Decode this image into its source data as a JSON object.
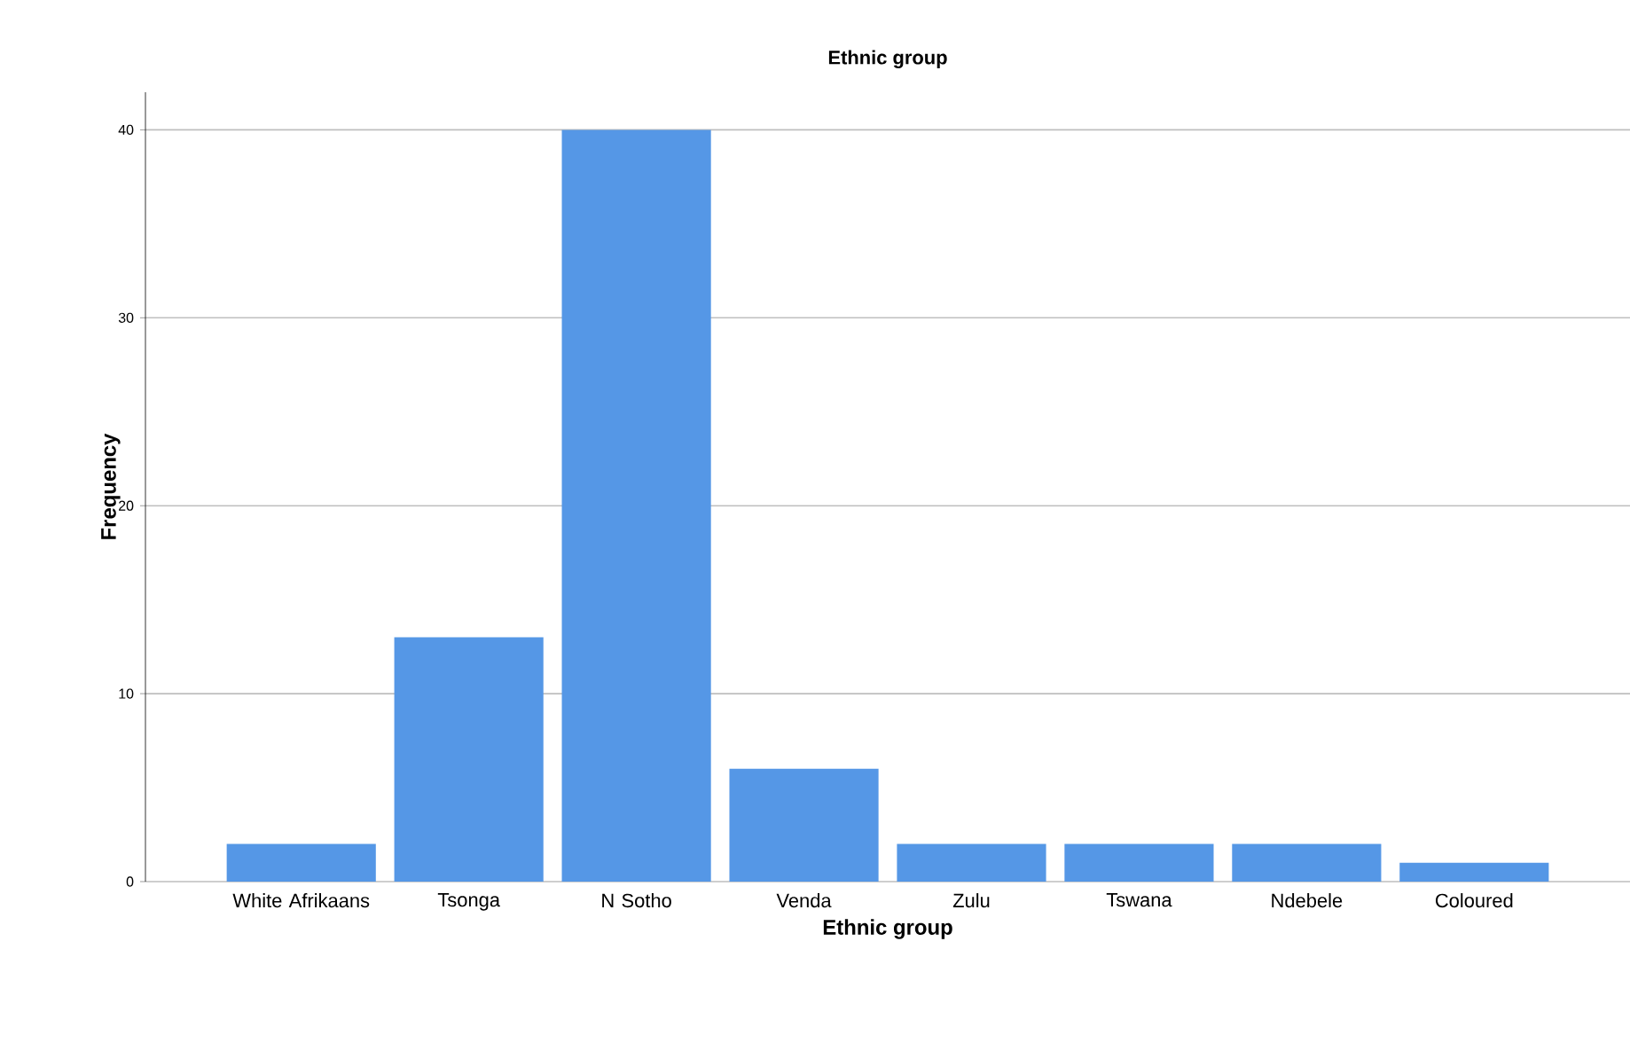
{
  "chart_data": {
    "type": "bar",
    "title": "Ethnic group",
    "xlabel": "Ethnic group",
    "ylabel": "Frequency",
    "categories": [
      "White Afrikaans",
      "Tsonga",
      "N Sotho",
      "Venda",
      "Zulu",
      "Tswana",
      "Ndebele",
      "Coloured"
    ],
    "values": [
      2,
      13,
      40,
      6,
      2,
      2,
      2,
      1
    ],
    "color": "#5597e6",
    "ylim": [
      0,
      42
    ],
    "yticks": [
      0,
      10,
      20,
      30,
      40
    ],
    "grid": "y"
  }
}
